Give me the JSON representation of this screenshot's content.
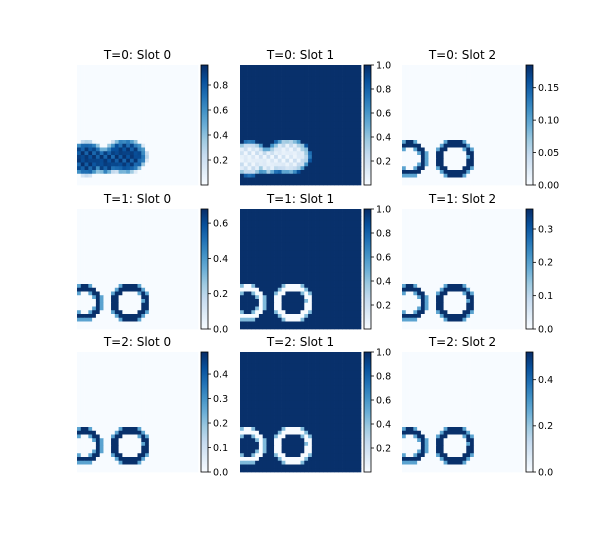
{
  "chart_data": {
    "type": "heatmap",
    "colormap": "Blues",
    "colormap_stops": [
      "#f7fbff",
      "#deebf7",
      "#c6dbef",
      "#9ecae1",
      "#6baed6",
      "#4292c6",
      "#2171b5",
      "#08519c",
      "#08306b"
    ],
    "grid": false,
    "panels": [
      {
        "title": "T=0: Slot 0",
        "vmin": 0.0,
        "vmax": 0.96,
        "cbar_ticks": [
          "0.2",
          "0.4",
          "0.6",
          "0.8"
        ],
        "cbar_tick_values": [
          0.2,
          0.4,
          0.6,
          0.8
        ],
        "pattern": "blobs"
      },
      {
        "title": "T=0: Slot 1",
        "vmin": 0.0,
        "vmax": 1.0,
        "cbar_ticks": [
          "0.2",
          "0.4",
          "0.6",
          "0.8",
          "1.0"
        ],
        "cbar_tick_values": [
          0.2,
          0.4,
          0.6,
          0.8,
          1.0
        ],
        "pattern": "blobs_inverse"
      },
      {
        "title": "T=0: Slot 2",
        "vmin": 0.0,
        "vmax": 0.185,
        "cbar_ticks": [
          "0.00",
          "0.05",
          "0.10",
          "0.15"
        ],
        "cbar_tick_values": [
          0.0,
          0.05,
          0.1,
          0.15
        ],
        "pattern": "rings"
      },
      {
        "title": "T=1: Slot 0",
        "vmin": 0.0,
        "vmax": 0.68,
        "cbar_ticks": [
          "0.0",
          "0.2",
          "0.4",
          "0.6"
        ],
        "cbar_tick_values": [
          0.0,
          0.2,
          0.4,
          0.6
        ],
        "pattern": "rings"
      },
      {
        "title": "T=1: Slot 1",
        "vmin": 0.0,
        "vmax": 1.0,
        "cbar_ticks": [
          "0.2",
          "0.4",
          "0.6",
          "0.8",
          "1.0"
        ],
        "cbar_tick_values": [
          0.2,
          0.4,
          0.6,
          0.8,
          1.0
        ],
        "pattern": "rings_inverse"
      },
      {
        "title": "T=1: Slot 2",
        "vmin": 0.0,
        "vmax": 0.36,
        "cbar_ticks": [
          "0.0",
          "0.1",
          "0.2",
          "0.3"
        ],
        "cbar_tick_values": [
          0.0,
          0.1,
          0.2,
          0.3
        ],
        "pattern": "rings"
      },
      {
        "title": "T=2: Slot 0",
        "vmin": 0.0,
        "vmax": 0.49,
        "cbar_ticks": [
          "0.0",
          "0.1",
          "0.2",
          "0.3",
          "0.4"
        ],
        "cbar_tick_values": [
          0.0,
          0.1,
          0.2,
          0.3,
          0.4
        ],
        "pattern": "rings"
      },
      {
        "title": "T=2: Slot 1",
        "vmin": 0.0,
        "vmax": 1.0,
        "cbar_ticks": [
          "0.2",
          "0.4",
          "0.6",
          "0.8",
          "1.0"
        ],
        "cbar_tick_values": [
          0.2,
          0.4,
          0.6,
          0.8,
          1.0
        ],
        "pattern": "rings_inverse"
      },
      {
        "title": "T=2: Slot 2",
        "vmin": 0.0,
        "vmax": 0.52,
        "cbar_ticks": [
          "0.0",
          "0.2",
          "0.4"
        ],
        "cbar_tick_values": [
          0.0,
          0.2,
          0.4
        ],
        "pattern": "rings"
      }
    ]
  }
}
